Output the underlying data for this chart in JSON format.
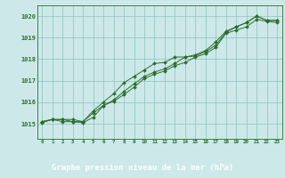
{
  "background_color": "#cce8e8",
  "plot_bg_color": "#cce8e8",
  "bottom_bar_color": "#2d6e2d",
  "line_color": "#2d6e2d",
  "marker_color": "#2d6e2d",
  "xlabel": "Graphe pression niveau de la mer (hPa)",
  "xlabel_fontsize": 6.5,
  "ylabel_ticks": [
    1015,
    1016,
    1017,
    1018,
    1019,
    1020
  ],
  "xlim": [
    -0.5,
    23.5
  ],
  "ylim": [
    1014.3,
    1020.5
  ],
  "xticks": [
    0,
    1,
    2,
    3,
    4,
    5,
    6,
    7,
    8,
    9,
    10,
    11,
    12,
    13,
    14,
    15,
    16,
    17,
    18,
    19,
    20,
    21,
    22,
    23
  ],
  "series": [
    [
      1015.1,
      1015.2,
      1015.2,
      1015.2,
      1015.1,
      1015.6,
      1016.0,
      1016.4,
      1016.9,
      1017.2,
      1017.5,
      1017.8,
      1017.85,
      1018.1,
      1018.1,
      1018.2,
      1018.4,
      1018.8,
      1019.3,
      1019.5,
      1019.7,
      1020.0,
      1019.8,
      1019.8
    ],
    [
      1015.1,
      1015.2,
      1015.2,
      1015.1,
      1015.1,
      1015.5,
      1015.85,
      1016.1,
      1016.5,
      1016.85,
      1017.2,
      1017.4,
      1017.55,
      1017.8,
      1018.1,
      1018.15,
      1018.35,
      1018.65,
      1019.25,
      1019.5,
      1019.7,
      1020.0,
      1019.8,
      1019.8
    ],
    [
      1015.05,
      1015.2,
      1015.1,
      1015.1,
      1015.05,
      1015.3,
      1015.85,
      1016.05,
      1016.35,
      1016.7,
      1017.1,
      1017.3,
      1017.45,
      1017.7,
      1017.85,
      1018.1,
      1018.25,
      1018.55,
      1019.2,
      1019.35,
      1019.5,
      1019.85,
      1019.75,
      1019.7
    ]
  ],
  "x_values": [
    0,
    1,
    2,
    3,
    4,
    5,
    6,
    7,
    8,
    9,
    10,
    11,
    12,
    13,
    14,
    15,
    16,
    17,
    18,
    19,
    20,
    21,
    22,
    23
  ]
}
